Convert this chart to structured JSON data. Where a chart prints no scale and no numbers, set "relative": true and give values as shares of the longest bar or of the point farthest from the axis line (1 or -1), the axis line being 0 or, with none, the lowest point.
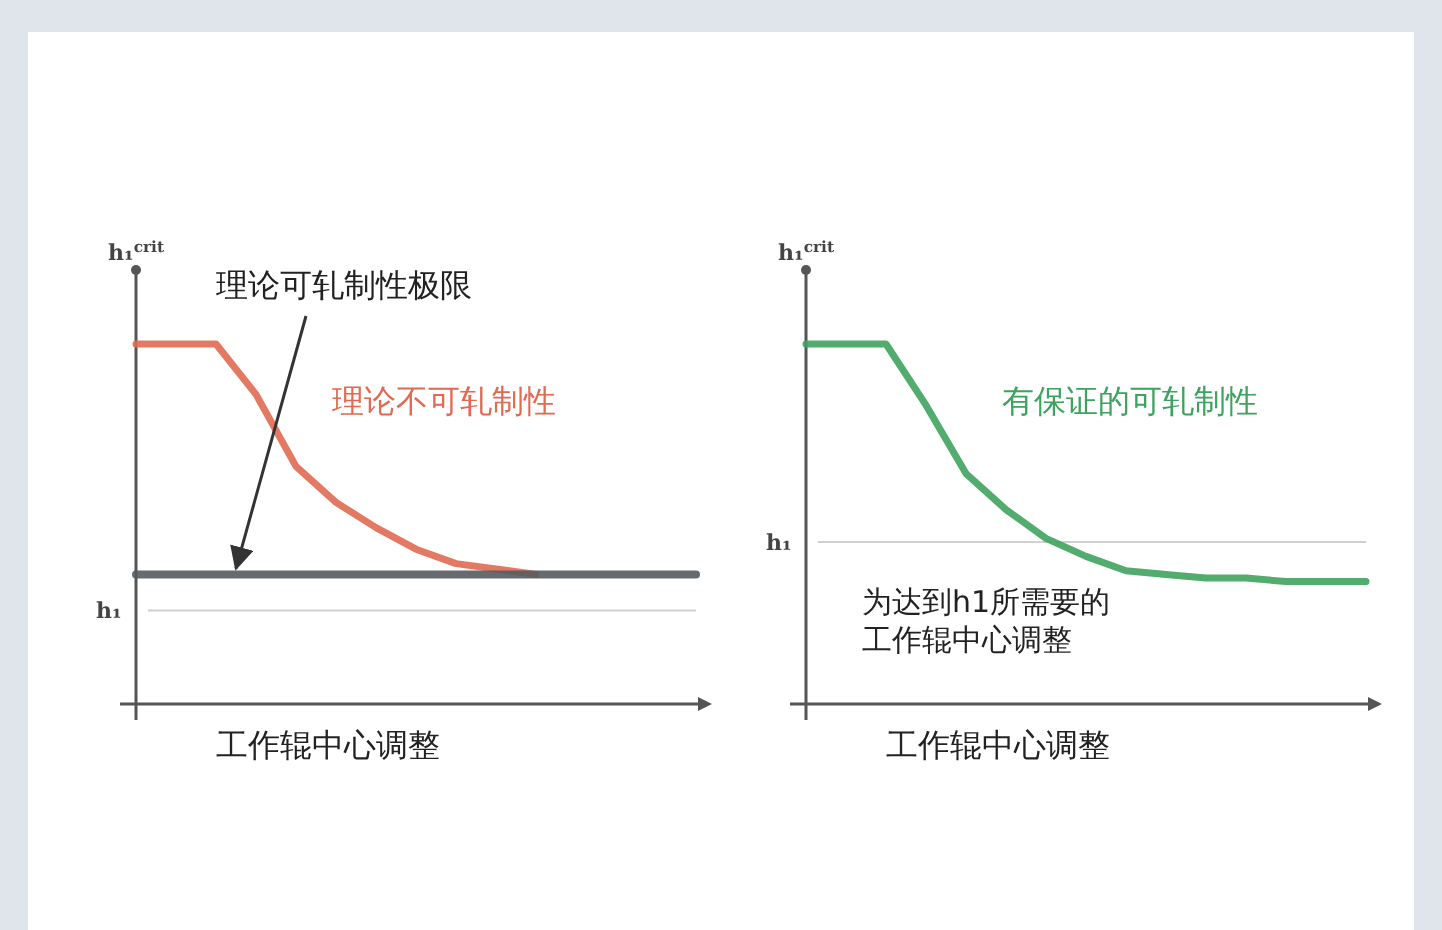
{
  "chart_data": [
    {
      "type": "line",
      "relative": true,
      "ylabel": "h₁$^{crit}$",
      "xlabel": "工作辊中心调整",
      "categories": [
        null,
        null,
        null,
        null,
        null,
        null,
        null,
        null,
        null,
        null,
        null,
        null,
        null,
        null,
        null
      ],
      "series": [
        {
          "name": "理论不可轧制性",
          "color": "#e06a52",
          "values": [
            1,
            1,
            1,
            0.86,
            0.66,
            0.56,
            0.49,
            0.43,
            0.39,
            0.375,
            0.36,
            null,
            null,
            null,
            null
          ]
        },
        {
          "name": "理论可轧制性极限",
          "color": "#555b60",
          "values": [
            0.36,
            0.36,
            0.36,
            0.36,
            0.36,
            0.36,
            0.36,
            0.36,
            0.36,
            0.36,
            0.36,
            0.36,
            0.36,
            0.36,
            0.36
          ]
        }
      ],
      "ref_lines": [
        {
          "axis": "y",
          "value": 0.26,
          "label": "h₁",
          "color": "#d0d0d0"
        }
      ]
    },
    {
      "type": "line",
      "relative": true,
      "ylabel": "h₁$^{crit}$",
      "xlabel": "工作辊中心调整",
      "categories": [
        null,
        null,
        null,
        null,
        null,
        null,
        null,
        null,
        null,
        null,
        null,
        null,
        null,
        null,
        null
      ],
      "series": [
        {
          "name": "有保证的可轧制性",
          "color": "#3ea35e",
          "values": [
            1,
            1,
            1,
            0.83,
            0.64,
            0.54,
            0.46,
            0.41,
            0.37,
            0.36,
            0.35,
            0.35,
            0.34,
            0.34,
            0.34
          ]
        }
      ],
      "ref_lines": [
        {
          "axis": "y",
          "value": 0.45,
          "label": "h₁",
          "color": "#d0d0d0"
        }
      ],
      "annotations": [
        "为达到h1所需要的工作辊中心调整"
      ]
    }
  ]
}
